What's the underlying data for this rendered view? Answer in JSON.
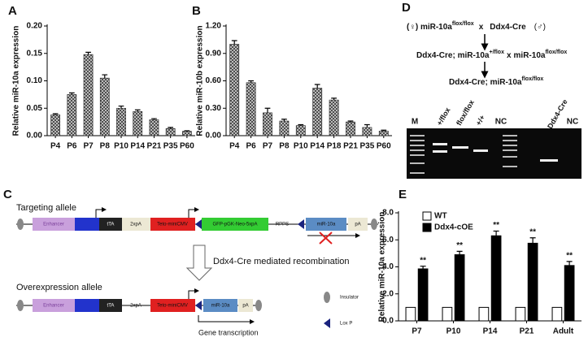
{
  "chart_data": [
    {
      "type": "bar",
      "label": "A",
      "ylabel": "Relative miR-10a expression",
      "categories": [
        "P4",
        "P6",
        "P7",
        "P8",
        "P10",
        "P14",
        "P21",
        "P35",
        "P60"
      ],
      "values": [
        0.038,
        0.075,
        0.148,
        0.105,
        0.05,
        0.044,
        0.029,
        0.013,
        0.008
      ],
      "errors": [
        0.002,
        0.003,
        0.004,
        0.006,
        0.004,
        0.003,
        0.002,
        0.002,
        0.001
      ],
      "color": "#9a9a9a",
      "ylim": [
        0,
        0.2
      ],
      "yticks": [
        {
          "value": 0,
          "label": "0.00"
        },
        {
          "value": 0.05,
          "label": "0.05"
        },
        {
          "value": 0.1,
          "label": "0.10"
        },
        {
          "value": 0.15,
          "label": "0.15"
        },
        {
          "value": 0.2,
          "label": "0.20"
        }
      ]
    },
    {
      "type": "bar",
      "label": "B",
      "ylabel": "Relative miR-10b expression",
      "categories": [
        "P4",
        "P6",
        "P7",
        "P8",
        "P10",
        "P14",
        "P18",
        "P21",
        "P35",
        "P60"
      ],
      "values": [
        1.0,
        0.58,
        0.25,
        0.16,
        0.11,
        0.52,
        0.39,
        0.15,
        0.09,
        0.05
      ],
      "errors": [
        0.04,
        0.02,
        0.05,
        0.02,
        0.01,
        0.04,
        0.02,
        0.01,
        0.03,
        0.01
      ],
      "color": "#9a9a9a",
      "ylim": [
        0,
        1.2
      ],
      "yticks": [
        {
          "value": 0,
          "label": "0.00"
        },
        {
          "value": 0.3,
          "label": "0.30"
        },
        {
          "value": 0.6,
          "label": "0.60"
        },
        {
          "value": 0.9,
          "label": "0.90"
        },
        {
          "value": 1.2,
          "label": "1.20"
        }
      ]
    },
    {
      "type": "grouped_bar",
      "label": "E",
      "ylabel": "Relative miR-10a expression",
      "categories": [
        "P7",
        "P10",
        "P14",
        "P21",
        "Adult"
      ],
      "series": [
        {
          "name": "WT",
          "color": "#ffffff",
          "values": [
            1,
            1,
            1,
            1,
            1
          ]
        },
        {
          "name": "Ddx4-cOE",
          "color": "#000000",
          "values": [
            3.85,
            4.9,
            6.3,
            5.75,
            4.1
          ],
          "errors": [
            0.2,
            0.25,
            0.35,
            0.4,
            0.3
          ],
          "annotations": [
            "**",
            "**",
            "**",
            "**",
            "**"
          ]
        }
      ],
      "legend": "upper left",
      "ylim": [
        0,
        8
      ],
      "yticks": [
        {
          "value": 0,
          "label": "0.0"
        },
        {
          "value": 2,
          "label": "2.0"
        },
        {
          "value": 4,
          "label": "4.0"
        },
        {
          "value": 6,
          "label": "6.0"
        },
        {
          "value": 8,
          "label": "8.0"
        }
      ]
    }
  ],
  "panel_c": {
    "label": "C",
    "targeting": {
      "title": "Targeting allele",
      "enhancer": "Enhancer",
      "tta": "tTA",
      "pa2": "2xpA",
      "teto": "Teto-miniCMV",
      "gfp": "GFP-pGK-Neo-5xpA",
      "rpps": "RPPS",
      "mir": "miR-10a",
      "pa": "pA"
    },
    "step": "Ddx4-Cre mediated recombination",
    "overexpression": {
      "title": "Overexpression allele",
      "enhancer": "Enhancer",
      "tta": "tTA",
      "pa2": "2xpA",
      "teto": "Teto-miniCMV",
      "mir": "miR-10a",
      "pa": "pA",
      "transcription": "Gene transcription"
    },
    "legend": {
      "insulator": "Insulator",
      "loxp": "Lox P"
    }
  },
  "panel_d": {
    "label": "D",
    "cross1": [
      "(♀) miR-10a",
      "flox/flox",
      "x",
      "Ddx4-Cre",
      "(♂)"
    ],
    "cross2": [
      "Ddx4-Cre; miR-10a",
      "+/flox",
      "x",
      "miR-10a",
      "flox/flox"
    ],
    "cross3": [
      "Ddx4-Cre; miR-10a",
      "flox/flox"
    ],
    "lanes": [
      "M",
      "+/flox",
      "flox/flox",
      "+/+",
      "NC",
      "Ddx4-Cre",
      "NC"
    ]
  }
}
